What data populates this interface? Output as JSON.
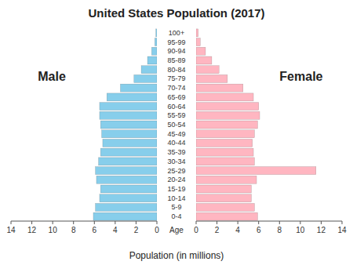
{
  "chart_data": {
    "type": "bar",
    "orientation": "horizontal",
    "title": "United States Population (2017)",
    "xlabel": "Population (in millions)",
    "ylabel": "Age",
    "categories": [
      "100+",
      "95-99",
      "90-94",
      "85-89",
      "80-84",
      "75-79",
      "70-74",
      "65-69",
      "60-64",
      "55-59",
      "50-54",
      "45-49",
      "40-44",
      "35-39",
      "30-34",
      "25-29",
      "20-24",
      "15-19",
      "10-14",
      "5-9",
      "0-4"
    ],
    "series": [
      {
        "name": "Male",
        "color": "#87CEEB",
        "values": [
          0.1,
          0.2,
          0.5,
          0.9,
          1.5,
          2.2,
          3.5,
          4.8,
          5.5,
          5.5,
          5.4,
          5.3,
          5.2,
          5.4,
          5.6,
          5.9,
          5.8,
          5.4,
          5.5,
          5.9,
          6.1
        ]
      },
      {
        "name": "Female",
        "color": "#FFB6C1",
        "values": [
          0.2,
          0.4,
          0.9,
          1.5,
          2.2,
          3.0,
          4.5,
          5.5,
          6.0,
          6.1,
          5.9,
          5.6,
          5.4,
          5.5,
          5.6,
          11.5,
          5.8,
          5.3,
          5.3,
          5.6,
          5.9
        ]
      }
    ],
    "xlim": [
      0,
      14
    ],
    "xticks": [
      0,
      2,
      4,
      6,
      8,
      10,
      12,
      14
    ],
    "grid": false
  }
}
